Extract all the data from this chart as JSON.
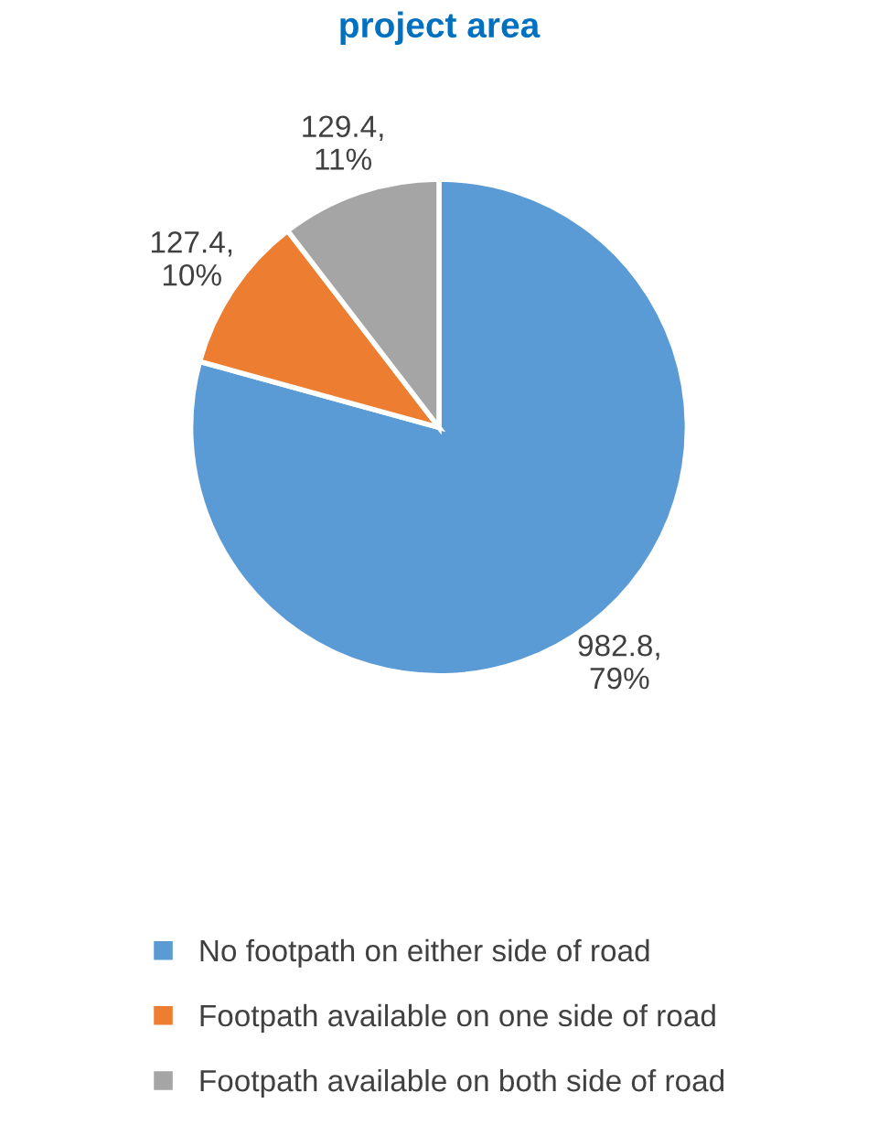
{
  "chart_data": {
    "type": "pie",
    "title": "project area",
    "categories": [
      "No footpath on either side of road",
      "Footpath available on one side of road",
      "Footpath available on both side of road"
    ],
    "values": [
      982.8,
      127.4,
      129.4
    ],
    "colors": [
      "#5b9bd5",
      "#ed7d31",
      "#a5a5a5"
    ],
    "value_labels": [
      "982.8,\n79%",
      "127.4,\n10%",
      "129.4,\n11%"
    ],
    "legend": "bottom"
  }
}
